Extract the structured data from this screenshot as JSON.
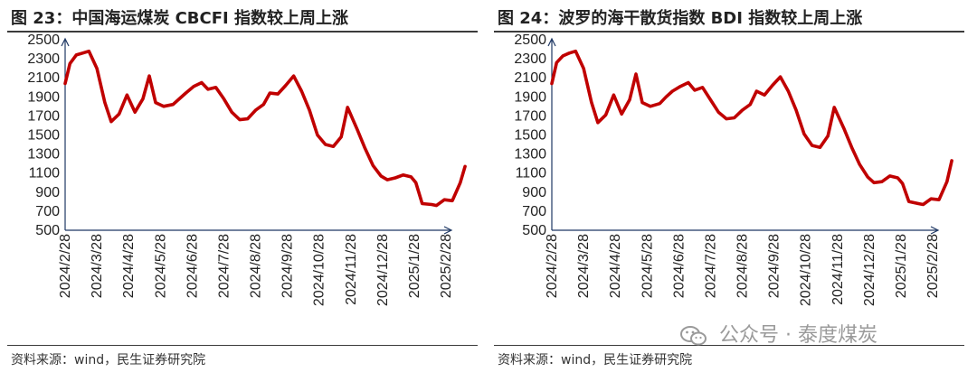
{
  "charts": [
    {
      "title": "图 23：中国海运煤炭 CBCFI 指数较上周上涨",
      "source": "资料来源：wind，民生证券研究院"
    },
    {
      "title": "图 24：波罗的海干散货指数 BDI 指数较上周上涨",
      "source": "资料来源：wind，民生证券研究院"
    }
  ],
  "watermark": {
    "text": "公众号 · 泰度煤炭",
    "icon": "wechat-icon"
  },
  "line_color": "#c00000",
  "axis_color": "#1f3864",
  "chart_data": [
    {
      "type": "line",
      "title": "",
      "xlabel": "",
      "ylabel": "",
      "ylim": [
        500,
        2500
      ],
      "yticks": [
        500,
        700,
        900,
        1100,
        1300,
        1500,
        1700,
        1900,
        2100,
        2300,
        2500
      ],
      "xticks": [
        "2024/2/28",
        "2024/3/28",
        "2024/4/28",
        "2024/5/28",
        "2024/6/28",
        "2024/7/28",
        "2024/8/28",
        "2024/9/28",
        "2024/10/28",
        "2024/11/28",
        "2024/12/28",
        "2025/1/28",
        "2025/2/28"
      ],
      "grid": false,
      "x_months": [
        0,
        0.15,
        0.35,
        0.55,
        0.75,
        1,
        1.25,
        1.45,
        1.7,
        1.95,
        2.2,
        2.45,
        2.65,
        2.85,
        3.1,
        3.4,
        3.6,
        3.8,
        4.05,
        4.3,
        4.5,
        4.75,
        5,
        5.25,
        5.5,
        5.75,
        6,
        6.25,
        6.45,
        6.7,
        6.95,
        7.2,
        7.45,
        7.7,
        7.95,
        8.2,
        8.45,
        8.7,
        8.9,
        9.2,
        9.45,
        9.7,
        9.95,
        10.15,
        10.4,
        10.65,
        10.9,
        11.05,
        11.25,
        11.55,
        11.7,
        11.95,
        12.2,
        12.45,
        12.6
      ],
      "values": [
        2040,
        2250,
        2340,
        2360,
        2380,
        2200,
        1840,
        1640,
        1720,
        1920,
        1740,
        1880,
        2120,
        1840,
        1800,
        1820,
        1880,
        1940,
        2010,
        2050,
        1980,
        2000,
        1880,
        1740,
        1660,
        1670,
        1760,
        1820,
        1940,
        1930,
        2020,
        2120,
        1960,
        1760,
        1500,
        1400,
        1380,
        1480,
        1790,
        1560,
        1360,
        1180,
        1070,
        1030,
        1050,
        1080,
        1060,
        1000,
        780,
        770,
        760,
        820,
        810,
        1000,
        1170
      ],
      "series": [
        {
          "name": "",
          "values": "values"
        }
      ]
    },
    {
      "type": "line",
      "title": "",
      "xlabel": "",
      "ylabel": "",
      "ylim": [
        500,
        2500
      ],
      "yticks": [
        500,
        700,
        900,
        1100,
        1300,
        1500,
        1700,
        1900,
        2100,
        2300,
        2500
      ],
      "xticks": [
        "2024/2/28",
        "2024/3/28",
        "2024/4/28",
        "2024/5/28",
        "2024/6/28",
        "2024/7/28",
        "2024/8/28",
        "2024/9/28",
        "2024/10/28",
        "2024/11/28",
        "2024/12/28",
        "2025/1/28",
        "2025/2/28"
      ],
      "grid": false,
      "x_months": [
        0,
        0.15,
        0.35,
        0.55,
        0.75,
        1,
        1.25,
        1.45,
        1.7,
        1.95,
        2.2,
        2.45,
        2.65,
        2.85,
        3.1,
        3.4,
        3.6,
        3.8,
        4.05,
        4.3,
        4.5,
        4.75,
        5,
        5.25,
        5.5,
        5.75,
        6,
        6.25,
        6.45,
        6.7,
        6.95,
        7.2,
        7.45,
        7.7,
        7.95,
        8.2,
        8.45,
        8.7,
        8.9,
        9.2,
        9.45,
        9.7,
        9.95,
        10.15,
        10.4,
        10.65,
        10.9,
        11.05,
        11.25,
        11.55,
        11.7,
        11.95,
        12.2,
        12.45,
        12.6
      ],
      "values": [
        2040,
        2260,
        2330,
        2360,
        2380,
        2200,
        1840,
        1630,
        1710,
        1920,
        1720,
        1870,
        2140,
        1840,
        1800,
        1830,
        1900,
        1960,
        2010,
        2050,
        1970,
        2000,
        1870,
        1740,
        1670,
        1680,
        1760,
        1820,
        1960,
        1920,
        2020,
        2110,
        1960,
        1760,
        1510,
        1390,
        1370,
        1490,
        1790,
        1570,
        1370,
        1190,
        1060,
        1000,
        1010,
        1070,
        1050,
        990,
        800,
        780,
        770,
        830,
        820,
        1010,
        1230
      ],
      "series": [
        {
          "name": "",
          "values": "values"
        }
      ]
    }
  ]
}
